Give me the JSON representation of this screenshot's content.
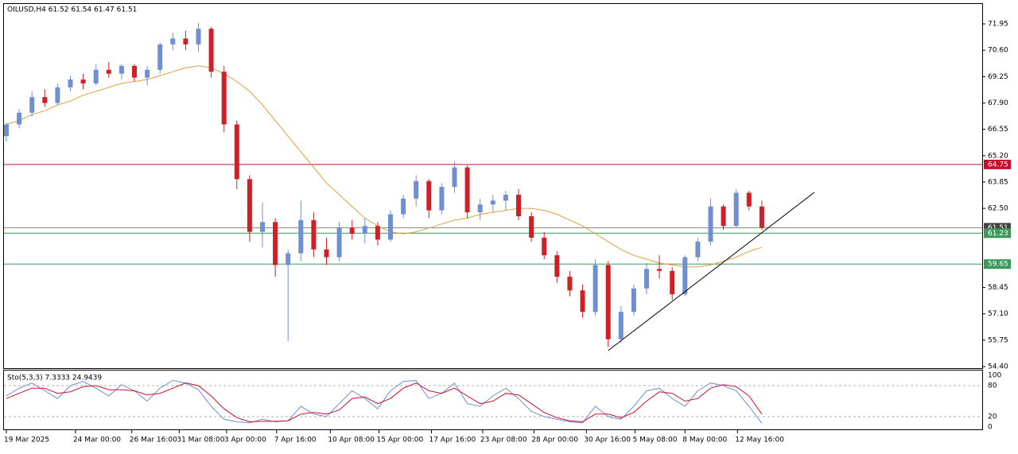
{
  "chart_data": {
    "type": "candlestick",
    "title": "OILUSD,H4  61.52 61.54 61.47 61.51",
    "bull_color": "#6f8fd1",
    "bear_color": "#d11f26",
    "ohlc": [
      [
        66.2,
        66.9,
        65.9,
        66.8
      ],
      [
        66.8,
        67.6,
        66.6,
        67.4
      ],
      [
        67.4,
        68.5,
        67.2,
        68.2
      ],
      [
        68.2,
        68.6,
        67.7,
        67.9
      ],
      [
        67.9,
        68.9,
        67.8,
        68.7
      ],
      [
        68.7,
        69.3,
        68.5,
        69.1
      ],
      [
        69.1,
        69.4,
        68.6,
        68.9
      ],
      [
        68.9,
        69.9,
        68.8,
        69.6
      ],
      [
        69.6,
        70.0,
        69.2,
        69.4
      ],
      [
        69.4,
        69.9,
        69.1,
        69.8
      ],
      [
        69.8,
        69.9,
        69.0,
        69.2
      ],
      [
        69.2,
        69.8,
        68.8,
        69.6
      ],
      [
        69.6,
        71.0,
        69.4,
        70.9
      ],
      [
        70.9,
        71.5,
        70.6,
        71.2
      ],
      [
        71.2,
        71.6,
        70.6,
        70.9
      ],
      [
        70.9,
        72.0,
        70.5,
        71.7
      ],
      [
        71.7,
        71.8,
        69.2,
        69.5
      ],
      [
        69.5,
        69.8,
        66.4,
        66.8
      ],
      [
        66.8,
        67.0,
        63.5,
        64.0
      ],
      [
        64.0,
        64.2,
        60.8,
        61.3
      ],
      [
        61.3,
        62.8,
        60.5,
        61.8
      ],
      [
        61.8,
        62.0,
        59.0,
        59.6
      ],
      [
        59.6,
        60.4,
        55.7,
        60.2
      ],
      [
        60.2,
        62.9,
        59.8,
        61.9
      ],
      [
        61.9,
        62.3,
        60.0,
        60.4
      ],
      [
        60.4,
        61.0,
        59.6,
        60.0
      ],
      [
        60.0,
        61.8,
        59.8,
        61.5
      ],
      [
        61.5,
        61.9,
        60.9,
        61.2
      ],
      [
        61.2,
        62.0,
        60.7,
        61.6
      ],
      [
        61.6,
        61.8,
        60.6,
        60.9
      ],
      [
        60.9,
        62.4,
        60.8,
        62.2
      ],
      [
        62.2,
        63.2,
        62.0,
        63.0
      ],
      [
        63.0,
        64.2,
        62.6,
        63.9
      ],
      [
        63.9,
        64.0,
        62.0,
        62.4
      ],
      [
        62.4,
        63.8,
        62.2,
        63.6
      ],
      [
        63.6,
        64.9,
        63.3,
        64.6
      ],
      [
        64.6,
        64.7,
        62.0,
        62.3
      ],
      [
        62.3,
        63.0,
        61.9,
        62.7
      ],
      [
        62.7,
        63.2,
        62.3,
        62.9
      ],
      [
        62.9,
        63.4,
        62.4,
        63.2
      ],
      [
        63.2,
        63.5,
        61.9,
        62.1
      ],
      [
        62.1,
        62.3,
        60.8,
        61.0
      ],
      [
        61.0,
        61.3,
        59.9,
        60.1
      ],
      [
        60.1,
        60.3,
        58.7,
        59.0
      ],
      [
        59.0,
        59.3,
        58.0,
        58.3
      ],
      [
        58.3,
        58.6,
        56.9,
        57.2
      ],
      [
        57.2,
        59.9,
        57.0,
        59.6
      ],
      [
        59.6,
        59.8,
        55.4,
        55.8
      ],
      [
        55.8,
        57.5,
        55.6,
        57.2
      ],
      [
        57.2,
        58.6,
        57.0,
        58.4
      ],
      [
        58.4,
        59.7,
        58.1,
        59.4
      ],
      [
        59.4,
        60.1,
        58.9,
        59.3
      ],
      [
        59.3,
        59.5,
        57.8,
        58.1
      ],
      [
        58.1,
        60.1,
        58.0,
        60.0
      ],
      [
        60.0,
        61.0,
        59.8,
        60.8
      ],
      [
        60.8,
        63.0,
        60.6,
        62.6
      ],
      [
        62.6,
        62.7,
        61.4,
        61.6
      ],
      [
        61.6,
        63.5,
        61.5,
        63.3
      ],
      [
        63.3,
        63.4,
        62.4,
        62.6
      ],
      [
        62.6,
        62.9,
        61.4,
        61.51
      ]
    ],
    "ma": {
      "color": "#e0a040",
      "values": [
        66.8,
        67.0,
        67.3,
        67.5,
        67.8,
        68.0,
        68.3,
        68.5,
        68.7,
        68.9,
        69.0,
        69.1,
        69.3,
        69.5,
        69.7,
        69.8,
        69.7,
        69.4,
        69.0,
        68.5,
        67.8,
        67.0,
        66.2,
        65.4,
        64.6,
        63.8,
        63.2,
        62.6,
        62.0,
        61.6,
        61.3,
        61.2,
        61.3,
        61.5,
        61.7,
        61.9,
        62.0,
        62.2,
        62.3,
        62.4,
        62.5,
        62.5,
        62.4,
        62.2,
        61.9,
        61.6,
        61.2,
        60.8,
        60.4,
        60.1,
        59.9,
        59.7,
        59.6,
        59.5,
        59.5,
        59.6,
        59.8,
        60.0,
        60.3,
        60.5
      ]
    },
    "ylim": [
      54.32,
      72.97
    ],
    "yticks": [
      71.95,
      {
        "value": 70.6,
        "label": "70.60"
      },
      69.25,
      {
        "value": 67.9,
        "label": "67.90"
      },
      66.55,
      {
        "value": 65.2,
        "label": "65.20"
      },
      63.85,
      {
        "value": 62.5,
        "label": "62.50"
      },
      58.45,
      {
        "value": 57.1,
        "label": "57.10"
      },
      55.75,
      {
        "value": 54.4,
        "label": "54.40"
      }
    ],
    "levels": [
      {
        "value": 64.75,
        "color": "#c8102e"
      },
      {
        "value": 61.51,
        "color": "#444444"
      },
      {
        "value": 61.23,
        "color": "#3a9a5b"
      },
      {
        "value": 59.65,
        "color": "#3a9a5b"
      }
    ],
    "trendline": {
      "x": [
        47,
        63.1
      ],
      "y": [
        55.22,
        63.32
      ],
      "color": "#000000"
    },
    "xticks": [
      {
        "value": 0,
        "label": "19 Mar 2025"
      },
      {
        "value": 5.4,
        "label": "24 Mar 00:00"
      },
      {
        "value": 9.8,
        "label": "26 Mar 16:00"
      },
      {
        "value": 13.5,
        "label": "31 Mar 08:00"
      },
      {
        "value": 17.2,
        "label": "3 Apr 00:00"
      },
      {
        "value": 21.1,
        "label": "7 Apr 16:00"
      },
      {
        "value": 25.3,
        "label": "10 Apr 08:00"
      },
      {
        "value": 29.1,
        "label": "15 Apr 00:00"
      },
      {
        "value": 33.2,
        "label": "17 Apr 16:00"
      },
      {
        "value": 37.2,
        "label": "23 Apr 08:00"
      },
      {
        "value": 41.2,
        "label": "28 Apr 00:00"
      },
      {
        "value": 45.3,
        "label": "30 Apr 16:00"
      },
      {
        "value": 49.1,
        "label": "5 May 08:00"
      },
      {
        "value": 53.0,
        "label": "8 May 00:00"
      },
      {
        "value": 57.1,
        "label": "12 May 16:00"
      }
    ],
    "stochastic": {
      "label": "Sto(5,3,3) 7.3333 24.9439",
      "ylim": [
        -4.6,
        109.2
      ],
      "yticks": [
        100,
        80,
        20,
        0
      ],
      "levels": [
        80,
        20
      ],
      "main": {
        "color": "#6f8fd1",
        "values": [
          60,
          75,
          85,
          70,
          55,
          80,
          88,
          75,
          60,
          82,
          70,
          50,
          75,
          90,
          85,
          72,
          40,
          15,
          10,
          8,
          15,
          10,
          12,
          40,
          25,
          20,
          45,
          70,
          55,
          35,
          70,
          88,
          90,
          55,
          65,
          85,
          45,
          40,
          60,
          75,
          55,
          30,
          20,
          15,
          10,
          8,
          40,
          20,
          15,
          40,
          70,
          75,
          55,
          40,
          70,
          85,
          80,
          70,
          40,
          7.3333
        ]
      },
      "signal": {
        "color": "#c8102e",
        "values": [
          55,
          65,
          75,
          75,
          65,
          68,
          78,
          80,
          72,
          72,
          70,
          62,
          65,
          75,
          85,
          80,
          60,
          35,
          18,
          10,
          11,
          11,
          12,
          25,
          28,
          25,
          33,
          55,
          58,
          45,
          55,
          75,
          85,
          70,
          65,
          75,
          60,
          45,
          50,
          65,
          62,
          45,
          28,
          18,
          12,
          10,
          25,
          25,
          18,
          28,
          50,
          68,
          65,
          50,
          55,
          75,
          82,
          78,
          60,
          24.9439
        ]
      }
    }
  }
}
